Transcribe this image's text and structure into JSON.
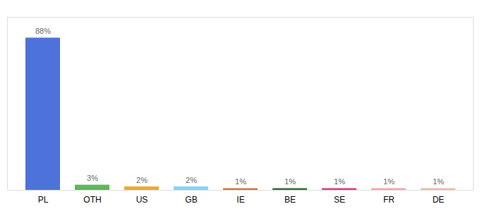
{
  "chart_data": {
    "type": "bar",
    "categories": [
      "PL",
      "OTH",
      "US",
      "GB",
      "IE",
      "BE",
      "SE",
      "FR",
      "DE"
    ],
    "values": [
      88,
      3,
      2,
      2,
      1,
      1,
      1,
      1,
      1
    ],
    "value_labels": [
      "88%",
      "3%",
      "2%",
      "2%",
      "1%",
      "1%",
      "1%",
      "1%",
      "1%"
    ],
    "colors": [
      "#4d72d9",
      "#5cb85c",
      "#f0a830",
      "#7dd8f0",
      "#c87941",
      "#2d6e2d",
      "#e0357a",
      "#f4a0b0",
      "#f0b8a0"
    ],
    "ylim": [
      0,
      100
    ],
    "data_labels": true,
    "tick_labels": "x",
    "grid": false
  }
}
